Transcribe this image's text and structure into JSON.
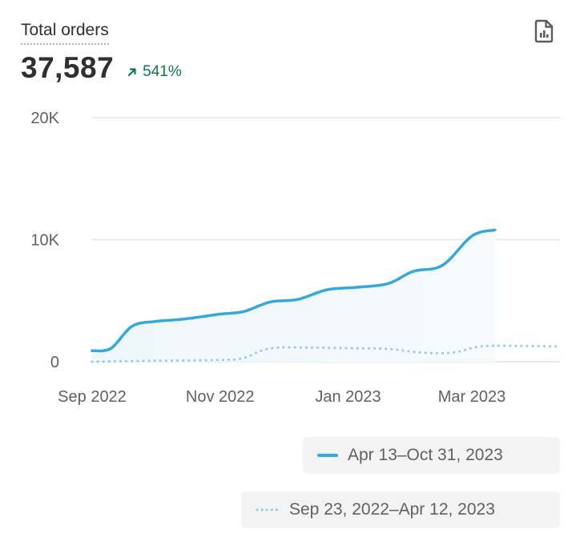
{
  "header": {
    "title": "Total orders",
    "value": "37,587",
    "delta": "541%",
    "delta_color": "#0c7a4e"
  },
  "icons": {
    "export": "report-file-icon",
    "delta": "arrow-up-right-icon"
  },
  "colors": {
    "current": "#34a7de",
    "previous": "#92cbe8",
    "grid": "#e6e6e6"
  },
  "chart_data": {
    "type": "line",
    "title": "",
    "xlabel": "",
    "ylabel": "",
    "y_ticks": [
      0,
      10000,
      20000
    ],
    "y_tick_labels": [
      "0",
      "10K",
      "20K"
    ],
    "ylim": [
      0,
      20000
    ],
    "x_tick_labels": [
      "Sep 2022",
      "Nov 2022",
      "Jan 2023",
      "Mar 2023"
    ],
    "x_tick_dates": [
      "2022-09-01",
      "2022-11-01",
      "2023-01-01",
      "2023-03-01"
    ],
    "xlim": [
      "2022-09-01",
      "2023-04-12"
    ],
    "grid": true,
    "legend_position": "bottom-right",
    "series": [
      {
        "name": "Apr 13–Oct 31, 2023",
        "style": "solid",
        "x": [
          "2022-09-01",
          "2022-09-10",
          "2022-09-20",
          "2022-10-01",
          "2022-10-15",
          "2022-11-01",
          "2022-11-12",
          "2022-11-25",
          "2022-12-08",
          "2022-12-22",
          "2023-01-05",
          "2023-01-20",
          "2023-02-01",
          "2023-02-15",
          "2023-03-01",
          "2023-03-12"
        ],
        "values": [
          900,
          1100,
          2900,
          3300,
          3500,
          3900,
          4100,
          4900,
          5100,
          5900,
          6100,
          6400,
          7400,
          7900,
          10300,
          10800
        ]
      },
      {
        "name": "Sep 23, 2022–Apr 12, 2023",
        "style": "dotted",
        "x": [
          "2022-09-01",
          "2022-10-01",
          "2022-11-01",
          "2022-11-12",
          "2022-11-25",
          "2022-12-15",
          "2023-01-05",
          "2023-01-20",
          "2023-02-05",
          "2023-02-20",
          "2023-03-05",
          "2023-03-20",
          "2023-04-12"
        ],
        "values": [
          0,
          80,
          150,
          300,
          1100,
          1150,
          1100,
          1050,
          750,
          750,
          1250,
          1300,
          1250
        ]
      }
    ]
  }
}
